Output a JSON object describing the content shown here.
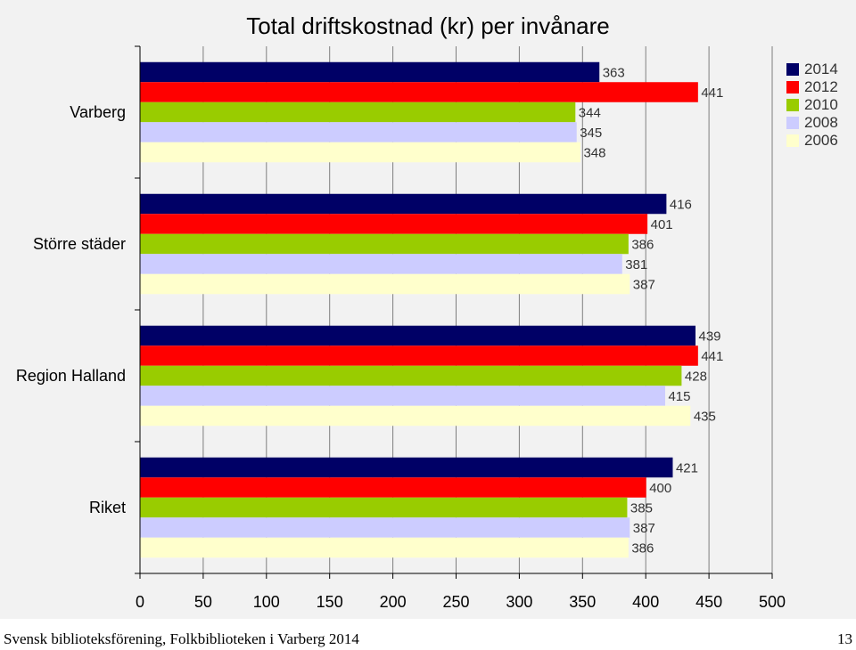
{
  "chart_data": {
    "type": "bar",
    "orientation": "horizontal",
    "title": "Total driftskostnad (kr) per invånare",
    "categories": [
      "Varberg",
      "Större städer",
      "Region Halland",
      "Riket"
    ],
    "series": [
      {
        "name": "2014",
        "color": "#000066",
        "values": [
          363,
          416,
          439,
          421
        ]
      },
      {
        "name": "2012",
        "color": "#ff0000",
        "values": [
          441,
          401,
          441,
          400
        ]
      },
      {
        "name": "2010",
        "color": "#99cc00",
        "values": [
          344,
          386,
          428,
          385
        ]
      },
      {
        "name": "2008",
        "color": "#ccccff",
        "values": [
          345,
          381,
          415,
          387
        ]
      },
      {
        "name": "2006",
        "color": "#ffffcc",
        "values": [
          348,
          387,
          435,
          386
        ]
      }
    ],
    "xlim": [
      0,
      500
    ],
    "xticks": [
      "0",
      "50",
      "100",
      "150",
      "200",
      "250",
      "300",
      "350",
      "400",
      "450",
      "500"
    ],
    "grid": true,
    "legend_position": "top-right",
    "xlabel": "",
    "ylabel": ""
  },
  "footer": {
    "source": "Svensk biblioteksförening, Folkbiblioteken i Varberg 2014",
    "page_number": "13"
  }
}
